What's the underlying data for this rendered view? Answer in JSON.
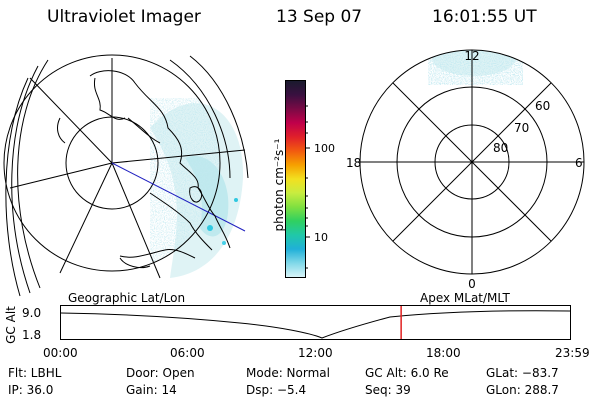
{
  "header": {
    "instrument": "Ultraviolet Imager",
    "date": "13 Sep 07",
    "time": "16:01:55 UT"
  },
  "colorbar": {
    "unit_label": "photon cm⁻²s⁻¹",
    "ticks": [
      "100",
      "10"
    ],
    "colors": [
      "#1a1a2e",
      "#3a1040",
      "#7a0a45",
      "#c0004a",
      "#e0202a",
      "#f25a10",
      "#f6a000",
      "#f2e020",
      "#c8ec40",
      "#80e040",
      "#30d060",
      "#20c8a8",
      "#20b0d8",
      "#80d8e8",
      "#d8f4f8"
    ]
  },
  "left_map": {
    "projection_label": "Geographic Lat/Lon"
  },
  "right_map": {
    "coord_label": "Apex MLat/MLT",
    "mlt_labels": [
      "12",
      "18",
      "6",
      "0"
    ],
    "lat_labels": [
      "60",
      "70",
      "80"
    ]
  },
  "timeline": {
    "ylabel": "GC Alt",
    "yticks": [
      "9.0",
      "1.8"
    ],
    "xticks": [
      "00:00",
      "06:00",
      "12:00",
      "18:00",
      "23:59"
    ],
    "current_time_hours": 16.03,
    "marker_color": "#e02020"
  },
  "info": {
    "filter": "Flt: LBHL",
    "door": "Door: Open",
    "mode": "Mode: Normal",
    "gc_alt": "GC Alt: 6.0 Re",
    "glat": "GLat: −83.7",
    "ip": "IP: 36.0",
    "gain": "Gain: 14",
    "dsp": "Dsp:   −5.4",
    "seq": "Seq: 39",
    "glon": "GLon: 288.7"
  }
}
